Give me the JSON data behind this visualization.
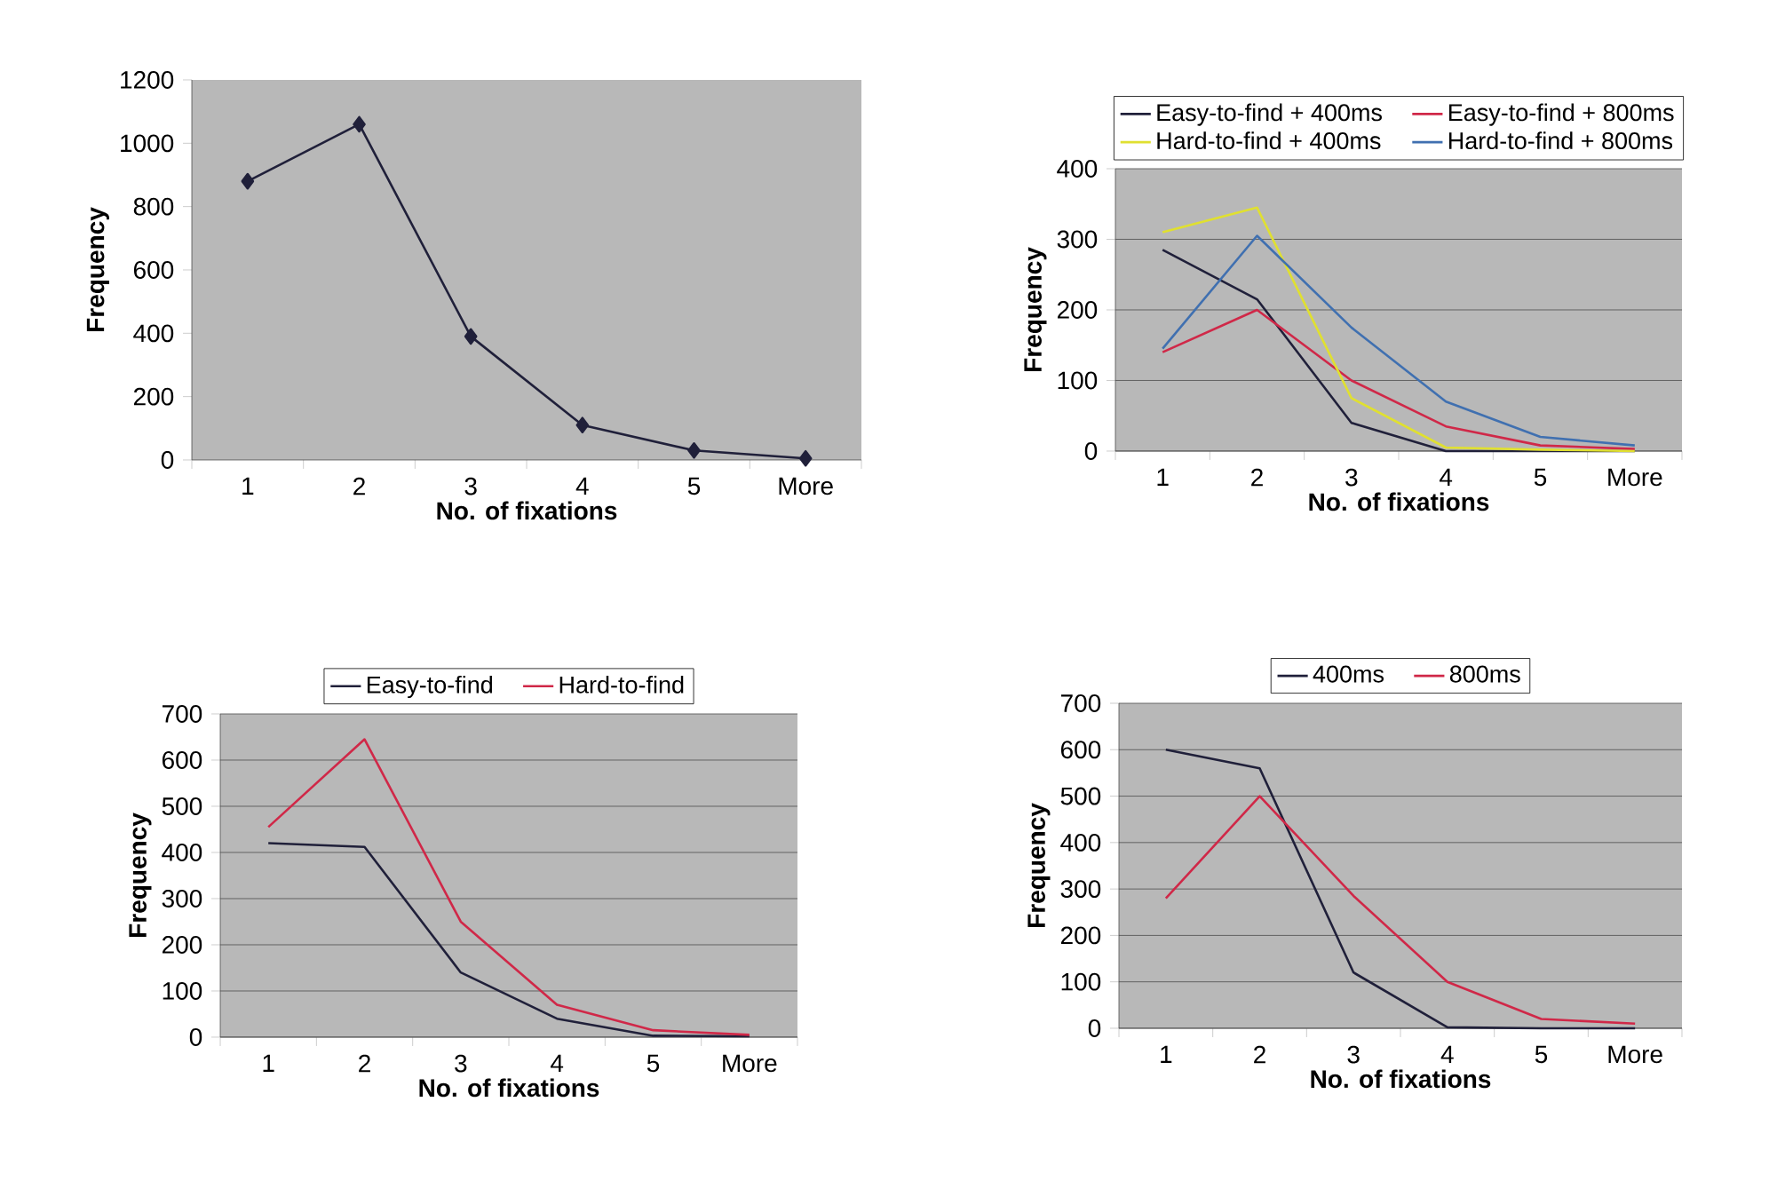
{
  "chart_data": [
    {
      "type": "line",
      "categories": [
        "1",
        "2",
        "3",
        "4",
        "5",
        "More"
      ],
      "xlabel": "No. of fixations",
      "ylabel": "Frequency",
      "ylim": [
        0,
        1200
      ],
      "yticks": [
        0,
        200,
        400,
        600,
        800,
        1000,
        1200
      ],
      "grid": false,
      "marker": "diamond",
      "series": [
        {
          "color": "#20203a",
          "values": [
            880,
            1060,
            390,
            110,
            30,
            5
          ]
        }
      ]
    },
    {
      "type": "line",
      "categories": [
        "1",
        "2",
        "3",
        "4",
        "5",
        "More"
      ],
      "xlabel": "No. of fixations",
      "ylabel": "Frequency",
      "ylim": [
        0,
        400
      ],
      "yticks": [
        0,
        100,
        200,
        300,
        400
      ],
      "grid": "y",
      "legend": "top",
      "series": [
        {
          "name": "Easy-to-find + 400ms",
          "color": "#20203a",
          "values": [
            285,
            215,
            40,
            0,
            0,
            0
          ]
        },
        {
          "name": "Easy-to-find + 800ms",
          "color": "#d02848",
          "values": [
            140,
            200,
            100,
            35,
            8,
            3
          ]
        },
        {
          "name": "Hard-to-find + 400ms",
          "color": "#e0e030",
          "values": [
            310,
            345,
            75,
            5,
            2,
            0
          ]
        },
        {
          "name": "Hard-to-find + 800ms",
          "color": "#4070b0",
          "values": [
            145,
            305,
            175,
            70,
            20,
            8
          ]
        }
      ]
    },
    {
      "type": "line",
      "categories": [
        "1",
        "2",
        "3",
        "4",
        "5",
        "More"
      ],
      "xlabel": "No. of fixations",
      "ylabel": "Frequency",
      "ylim": [
        0,
        700
      ],
      "yticks": [
        0,
        100,
        200,
        300,
        400,
        500,
        600,
        700
      ],
      "grid": "y",
      "legend": "top",
      "series": [
        {
          "name": "Easy-to-find",
          "color": "#20203a",
          "values": [
            420,
            412,
            140,
            40,
            3,
            2
          ]
        },
        {
          "name": "Hard-to-find",
          "color": "#d02848",
          "values": [
            455,
            645,
            250,
            70,
            15,
            5
          ]
        }
      ]
    },
    {
      "type": "line",
      "categories": [
        "1",
        "2",
        "3",
        "4",
        "5",
        "More"
      ],
      "xlabel": "No. of fixations",
      "ylabel": "Frequency",
      "ylim": [
        0,
        700
      ],
      "yticks": [
        0,
        100,
        200,
        300,
        400,
        500,
        600,
        700
      ],
      "grid": "y",
      "legend": "top",
      "series": [
        {
          "name": "400ms",
          "color": "#20203a",
          "values": [
            600,
            560,
            120,
            2,
            0,
            0
          ]
        },
        {
          "name": "800ms",
          "color": "#d02848",
          "values": [
            280,
            500,
            285,
            100,
            20,
            10
          ]
        }
      ]
    }
  ]
}
